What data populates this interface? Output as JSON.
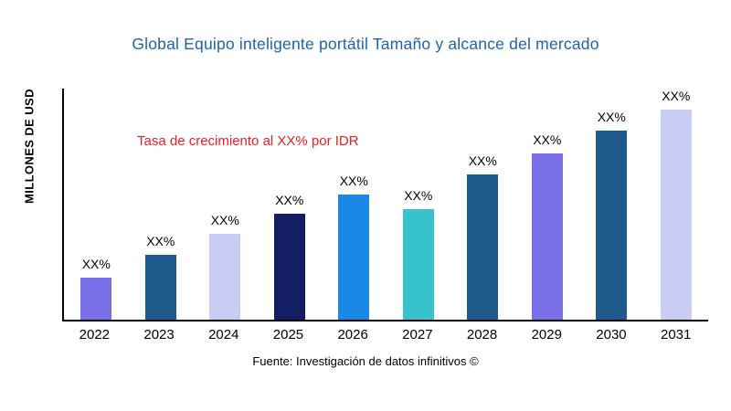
{
  "chart_data": {
    "type": "bar",
    "title": "Global Equipo inteligente portátil Tamaño y alcance del mercado",
    "title_color": "#1F63A8",
    "ylabel": "MILLONES DE USD",
    "xlabel": "",
    "categories": [
      "2022",
      "2023",
      "2024",
      "2025",
      "2026",
      "2027",
      "2028",
      "2029",
      "2030",
      "2031"
    ],
    "values": [
      18,
      28,
      37,
      46,
      54,
      48,
      63,
      72,
      82,
      91
    ],
    "bar_labels": [
      "XX%",
      "XX%",
      "XX%",
      "XX%",
      "XX%",
      "XX%",
      "XX%",
      "XX%",
      "XX%",
      "XX%"
    ],
    "bar_colors": [
      "#7A6FE6",
      "#1F5A8C",
      "#C9CCF4",
      "#141F63",
      "#1B87E6",
      "#38C2CC",
      "#1F5A8C",
      "#7A6FE6",
      "#1F5A8C",
      "#C9CCF4"
    ],
    "annotation": "Tasa de crecimiento al XX% por IDR",
    "annotation_color": "#ED1C24",
    "source": "Fuente: Investigación de datos infinitivos ©",
    "ylim": [
      0,
      100
    ],
    "grid": false,
    "legend": false,
    "axis_color": "#000000"
  }
}
